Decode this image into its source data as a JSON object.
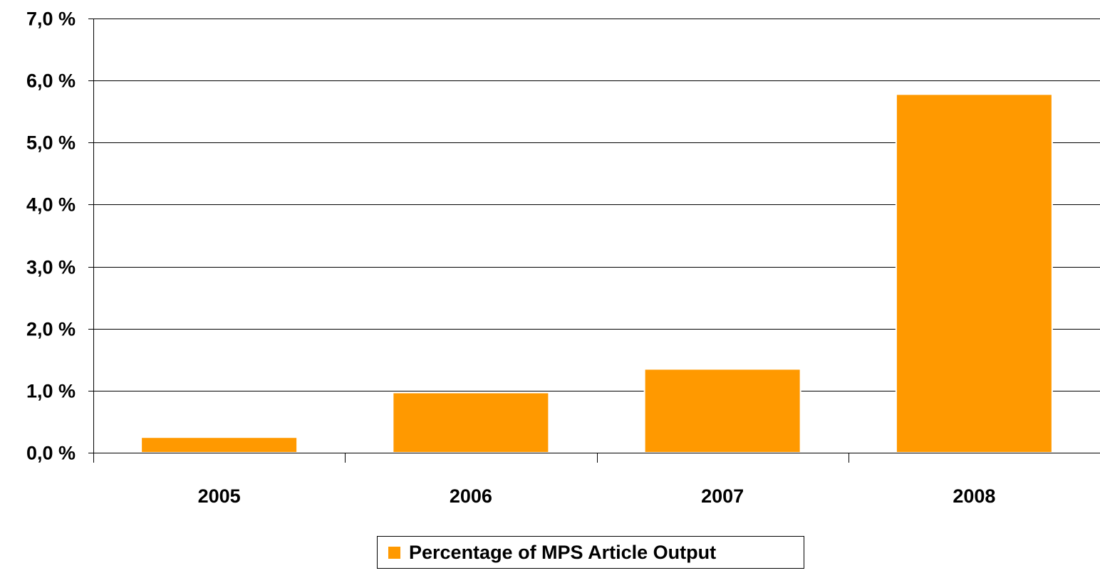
{
  "chart_data": {
    "type": "bar",
    "title": "",
    "xlabel": "",
    "ylabel": "",
    "categories": [
      "2005",
      "2006",
      "2007",
      "2008"
    ],
    "series": [
      {
        "name": "Percentage of MPS Article Output",
        "values": [
          0.25,
          0.97,
          1.35,
          5.78
        ],
        "color": "#FF9900"
      }
    ],
    "ylim": [
      0,
      7
    ],
    "y_ticks": [
      0,
      1,
      2,
      3,
      4,
      5,
      6,
      7
    ],
    "y_tick_labels": [
      "0,0 %",
      "1,0 %",
      "2,0 %",
      "3,0 %",
      "4,0 %",
      "5,0 %",
      "6,0 %",
      "7,0 %"
    ],
    "grid": true,
    "legend_position": "bottom"
  }
}
